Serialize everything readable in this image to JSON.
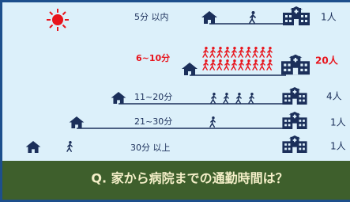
{
  "rows": [
    {
      "time": "5分 以内",
      "count": "1人"
    },
    {
      "time": "6~10分",
      "count": "20人"
    },
    {
      "time": "11~20分",
      "count": "4人"
    },
    {
      "time": "21~30分",
      "count": "1人"
    },
    {
      "time": "30分 以上",
      "count": "1人"
    }
  ],
  "question": "Q. 家から病院までの通勤時間は？"
}
